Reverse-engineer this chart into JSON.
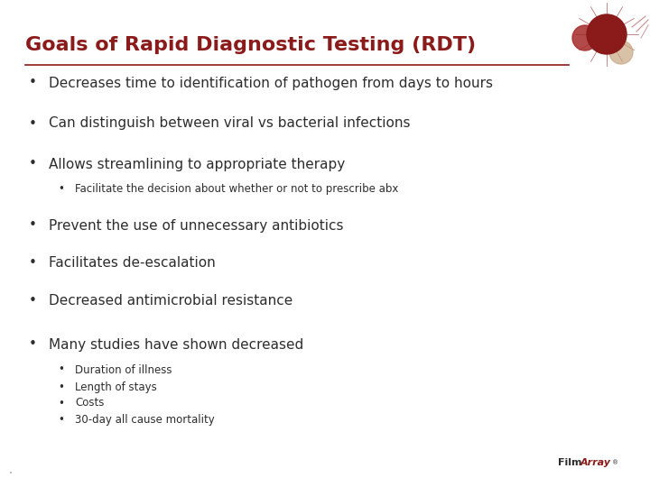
{
  "title": "Goals of Rapid Diagnostic Testing (RDT)",
  "title_color": "#8B1A1A",
  "title_fontsize": 16,
  "line_color": "#8B1A1A",
  "background_color": "#FFFFFF",
  "bullet_color": "#2D2D2D",
  "bullet_fontsize": 11,
  "sub_bullet_fontsize": 8.5,
  "bullets": [
    {
      "text": "Decreases time to identification of pathogen from days to hours",
      "level": 1
    },
    {
      "text": "Can distinguish between viral vs bacterial infections",
      "level": 1
    },
    {
      "text": "Allows streamlining to appropriate therapy",
      "level": 1
    },
    {
      "text": "Facilitate the decision about whether or not to prescribe abx",
      "level": 2
    },
    {
      "text": "Prevent the use of unnecessary antibiotics",
      "level": 1
    },
    {
      "text": "Facilitates de-escalation",
      "level": 1
    },
    {
      "text": "Decreased antimicrobial resistance",
      "level": 1
    },
    {
      "text": "Many studies have shown decreased",
      "level": 1
    },
    {
      "text": "Duration of illness",
      "level": 2
    },
    {
      "text": "Length of stays",
      "level": 2
    },
    {
      "text": "Costs",
      "level": 2
    },
    {
      "text": "30-day all cause mortality",
      "level": 2
    }
  ],
  "film_color": "#2D2D2D",
  "array_color": "#8B1A1A",
  "filmarray_fontsize": 8,
  "trademark_symbol": "®"
}
